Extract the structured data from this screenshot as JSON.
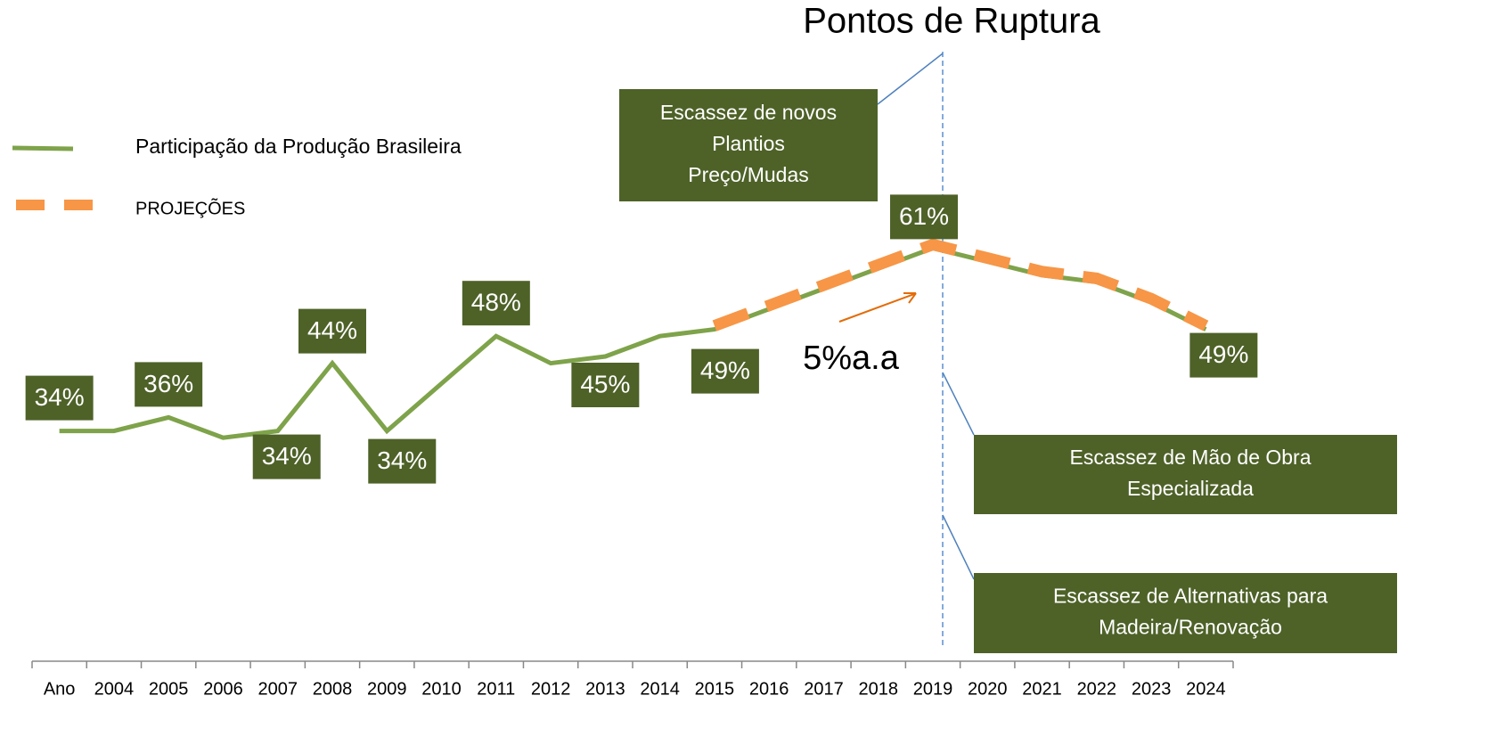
{
  "chart_data": {
    "type": "line",
    "title": "Pontos de Ruptura",
    "categories": [
      "Ano",
      "2004",
      "2005",
      "2006",
      "2007",
      "2008",
      "2009",
      "2010",
      "2011",
      "2012",
      "2013",
      "2014",
      "2015",
      "2016",
      "2017",
      "2018",
      "2019",
      "2020",
      "2021",
      "2022",
      "2023",
      "2024"
    ],
    "series": [
      {
        "name": "Participação da Produção Brasileira",
        "color": "#7ea34a",
        "values": [
          34,
          34,
          36,
          33,
          34,
          44,
          34,
          41,
          48,
          44,
          45,
          48,
          49,
          52,
          55,
          58,
          61,
          59,
          57,
          56,
          53,
          49
        ],
        "value_labels": [
          "34%",
          null,
          "36%",
          null,
          "34%",
          "44%",
          "34%",
          null,
          "48%",
          null,
          "45%",
          null,
          "49%",
          null,
          null,
          null,
          "61%",
          null,
          null,
          null,
          null,
          "49%"
        ]
      },
      {
        "name": "PROJEÇÕES",
        "color": "#f79646",
        "dashed": true,
        "values": [
          null,
          null,
          null,
          null,
          null,
          null,
          null,
          null,
          null,
          null,
          null,
          null,
          49,
          52,
          55,
          58,
          61,
          59,
          57,
          56,
          53,
          49
        ]
      }
    ],
    "ylim": [
      0,
      90
    ],
    "annotations": {
      "rate": "5%a.a",
      "boxes": [
        [
          "Escassez de novos",
          "Plantios",
          "Preço/Mudas"
        ],
        [
          "Escassez de Mão de Obra",
          "Especializada"
        ],
        [
          "Escassez de Alternativas para",
          "Madeira/Renovação"
        ]
      ]
    },
    "label_box_color": "#4e6228"
  }
}
